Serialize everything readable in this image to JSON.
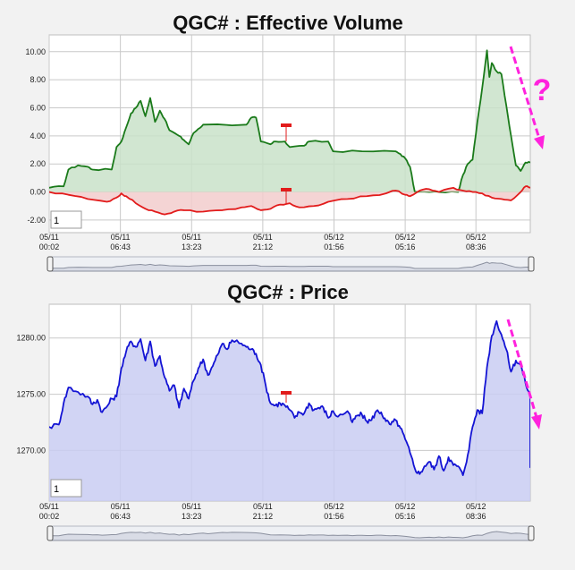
{
  "chart_data": [
    {
      "type": "line",
      "title": "QGC# : Effective Volume",
      "xlabel": "",
      "ylabel": "",
      "ylim": [
        -2.9,
        11.2
      ],
      "y_ticks": [
        "10.00",
        "8.00",
        "6.00",
        "4.00",
        "2.00",
        "0.00",
        "-2.00"
      ],
      "y_tick_values": [
        10,
        8,
        6,
        4,
        2,
        0,
        -2
      ],
      "x_range": [
        0,
        100
      ],
      "x_ticks": [
        {
          "date": "05/11",
          "time": "00:02",
          "x": 0
        },
        {
          "date": "05/11",
          "time": "06:43",
          "x": 14.8
        },
        {
          "date": "05/11",
          "time": "13:23",
          "x": 29.6
        },
        {
          "date": "05/11",
          "time": "21:12",
          "x": 44.4
        },
        {
          "date": "05/12",
          "time": "01:56",
          "x": 59.2
        },
        {
          "date": "05/12",
          "time": "05:16",
          "x": 74.0
        },
        {
          "date": "05/12",
          "time": "08:36",
          "x": 88.7
        }
      ],
      "grid": true,
      "zoom_value": "1",
      "series": [
        {
          "color": "#1a7a1a",
          "fill": "#c9e2c9",
          "points": [
            [
              0,
              0.3
            ],
            [
              3,
              0.4
            ],
            [
              4,
              1.6
            ],
            [
              6,
              1.9
            ],
            [
              8,
              1.8
            ],
            [
              9,
              1.6
            ],
            [
              13,
              1.6
            ],
            [
              14,
              3.2
            ],
            [
              15,
              3.6
            ],
            [
              16,
              4.6
            ],
            [
              17,
              5.6
            ],
            [
              18,
              6.0
            ],
            [
              19,
              6.5
            ],
            [
              20,
              5.4
            ],
            [
              21,
              6.7
            ],
            [
              22,
              5.0
            ],
            [
              23,
              5.8
            ],
            [
              24,
              5.2
            ],
            [
              25,
              4.4
            ],
            [
              27,
              4.0
            ],
            [
              28,
              3.7
            ],
            [
              29,
              3.4
            ],
            [
              30,
              4.2
            ],
            [
              31,
              4.5
            ],
            [
              32,
              4.8
            ],
            [
              41,
              4.8
            ],
            [
              42,
              5.3
            ],
            [
              43,
              5.3
            ],
            [
              44,
              3.6
            ],
            [
              46,
              3.4
            ],
            [
              47,
              3.6
            ],
            [
              49,
              3.6
            ],
            [
              50,
              3.2
            ],
            [
              53,
              3.3
            ],
            [
              54,
              3.6
            ],
            [
              58,
              3.6
            ],
            [
              59,
              2.9
            ],
            [
              65,
              2.9
            ],
            [
              72,
              2.9
            ],
            [
              73,
              2.7
            ],
            [
              74,
              2.4
            ],
            [
              75,
              1.8
            ],
            [
              76,
              0.0
            ],
            [
              79,
              0.0
            ],
            [
              81,
              0.0
            ],
            [
              85,
              0.0
            ],
            [
              86,
              1.2
            ],
            [
              87,
              2.0
            ],
            [
              88,
              2.3
            ],
            [
              89,
              5.0
            ],
            [
              90,
              7.4
            ],
            [
              91,
              10.1
            ],
            [
              91.5,
              8.2
            ],
            [
              92,
              9.2
            ],
            [
              93,
              8.6
            ],
            [
              94,
              8.4
            ],
            [
              95,
              6.2
            ],
            [
              96,
              4.0
            ],
            [
              97,
              1.9
            ],
            [
              98,
              1.5
            ],
            [
              99,
              2.1
            ],
            [
              100,
              2.1
            ]
          ]
        },
        {
          "color": "#e21b1b",
          "fill": "#f2cccc",
          "points": [
            [
              0,
              0.0
            ],
            [
              4,
              -0.2
            ],
            [
              8,
              -0.5
            ],
            [
              12,
              -0.7
            ],
            [
              14,
              -0.4
            ],
            [
              15,
              -0.1
            ],
            [
              16,
              -0.3
            ],
            [
              18,
              -0.8
            ],
            [
              20,
              -1.2
            ],
            [
              22,
              -1.4
            ],
            [
              24,
              -1.6
            ],
            [
              26,
              -1.4
            ],
            [
              28,
              -1.3
            ],
            [
              32,
              -1.4
            ],
            [
              36,
              -1.3
            ],
            [
              40,
              -1.1
            ],
            [
              42,
              -1.0
            ],
            [
              44,
              -1.3
            ],
            [
              46,
              -1.2
            ],
            [
              48,
              -0.9
            ],
            [
              50,
              -0.8
            ],
            [
              52,
              -1.1
            ],
            [
              55,
              -1.0
            ],
            [
              58,
              -0.7
            ],
            [
              62,
              -0.5
            ],
            [
              66,
              -0.3
            ],
            [
              70,
              -0.1
            ],
            [
              72,
              0.1
            ],
            [
              74,
              -0.2
            ],
            [
              75,
              -0.3
            ],
            [
              77,
              0.1
            ],
            [
              79,
              0.2
            ],
            [
              81,
              0.0
            ],
            [
              84,
              0.3
            ],
            [
              86,
              0.1
            ],
            [
              88,
              0.0
            ],
            [
              90,
              -0.1
            ],
            [
              92,
              -0.4
            ],
            [
              94,
              -0.5
            ],
            [
              96,
              -0.6
            ],
            [
              98,
              0.0
            ],
            [
              99,
              0.4
            ],
            [
              100,
              0.3
            ]
          ]
        }
      ],
      "annotation_arrow_color": "#ff22dd",
      "annotation_text": "?"
    },
    {
      "type": "area",
      "title": "QGC# : Price",
      "xlabel": "",
      "ylabel": "",
      "ylim": [
        1265.5,
        1283
      ],
      "y_ticks": [
        "1280.00",
        "1275.00",
        "1270.00"
      ],
      "y_tick_values": [
        1280,
        1275,
        1270
      ],
      "x_range": [
        0,
        100
      ],
      "x_ticks": [
        {
          "date": "05/11",
          "time": "00:02",
          "x": 0
        },
        {
          "date": "05/11",
          "time": "06:43",
          "x": 14.8
        },
        {
          "date": "05/11",
          "time": "13:23",
          "x": 29.6
        },
        {
          "date": "05/11",
          "time": "21:12",
          "x": 44.4
        },
        {
          "date": "05/12",
          "time": "01:56",
          "x": 59.2
        },
        {
          "date": "05/12",
          "time": "05:16",
          "x": 74.0
        },
        {
          "date": "05/12",
          "time": "08:36",
          "x": 88.7
        }
      ],
      "grid": true,
      "zoom_value": "1",
      "series": [
        {
          "color": "#1414d4",
          "fill": "#c9ccf2",
          "points": [
            [
              0,
              1272.1
            ],
            [
              2,
              1272.3
            ],
            [
              3,
              1274.2
            ],
            [
              4,
              1275.6
            ],
            [
              6,
              1275.2
            ],
            [
              8,
              1274.8
            ],
            [
              9,
              1274.1
            ],
            [
              10,
              1274.5
            ],
            [
              11,
              1273.4
            ],
            [
              12,
              1273.9
            ],
            [
              13,
              1274.6
            ],
            [
              14,
              1274.8
            ],
            [
              15,
              1277.3
            ],
            [
              16,
              1278.8
            ],
            [
              17,
              1279.7
            ],
            [
              18,
              1279.2
            ],
            [
              19,
              1279.9
            ],
            [
              20,
              1278.0
            ],
            [
              21,
              1279.7
            ],
            [
              22,
              1277.5
            ],
            [
              23,
              1278.4
            ],
            [
              24,
              1276.5
            ],
            [
              25,
              1275.3
            ],
            [
              26,
              1275.8
            ],
            [
              27,
              1273.8
            ],
            [
              28,
              1275.5
            ],
            [
              29,
              1274.6
            ],
            [
              30,
              1276.2
            ],
            [
              31,
              1277.3
            ],
            [
              32,
              1278.1
            ],
            [
              33,
              1276.7
            ],
            [
              34,
              1277.5
            ],
            [
              35,
              1278.5
            ],
            [
              36,
              1279.5
            ],
            [
              37,
              1279.0
            ],
            [
              38,
              1279.8
            ],
            [
              40,
              1279.5
            ],
            [
              41,
              1279.2
            ],
            [
              42,
              1279.0
            ],
            [
              43,
              1278.6
            ],
            [
              44,
              1277.6
            ],
            [
              45,
              1275.8
            ],
            [
              46,
              1274.2
            ],
            [
              47,
              1274.0
            ],
            [
              48,
              1274.2
            ],
            [
              49,
              1274.0
            ],
            [
              50,
              1273.6
            ],
            [
              51,
              1272.9
            ],
            [
              52,
              1273.4
            ],
            [
              53,
              1273.3
            ],
            [
              54,
              1274.2
            ],
            [
              55,
              1273.6
            ],
            [
              56,
              1273.8
            ],
            [
              57,
              1273.8
            ],
            [
              58,
              1272.9
            ],
            [
              59,
              1273.5
            ],
            [
              60,
              1273.0
            ],
            [
              62,
              1273.5
            ],
            [
              63,
              1272.5
            ],
            [
              64,
              1273.1
            ],
            [
              65,
              1273.2
            ],
            [
              66,
              1272.6
            ],
            [
              67,
              1272.7
            ],
            [
              68,
              1273.5
            ],
            [
              69,
              1273.4
            ],
            [
              70,
              1272.6
            ],
            [
              71,
              1272.3
            ],
            [
              72,
              1272.7
            ],
            [
              73,
              1272.0
            ],
            [
              74,
              1271.0
            ],
            [
              75,
              1269.8
            ],
            [
              76,
              1268.4
            ],
            [
              77,
              1267.9
            ],
            [
              78,
              1268.6
            ],
            [
              79,
              1269.0
            ],
            [
              80,
              1268.3
            ],
            [
              81,
              1269.5
            ],
            [
              82,
              1268.2
            ],
            [
              83,
              1269.4
            ],
            [
              84,
              1268.7
            ],
            [
              85,
              1268.6
            ],
            [
              86,
              1267.8
            ],
            [
              87,
              1269.6
            ],
            [
              88,
              1272.1
            ],
            [
              89,
              1273.6
            ],
            [
              90,
              1273.3
            ],
            [
              91,
              1277.4
            ],
            [
              92,
              1280.2
            ],
            [
              93,
              1281.5
            ],
            [
              94,
              1280.3
            ],
            [
              95,
              1279.0
            ],
            [
              96,
              1277.0
            ],
            [
              97,
              1278.0
            ],
            [
              98,
              1277.6
            ],
            [
              99,
              1276.0
            ],
            [
              100,
              1274.8
            ],
            [
              101,
              1270.2
            ],
            [
              102,
              1268.5
            ],
            [
              103,
              1269.0
            ],
            [
              104,
              1269.8
            ],
            [
              105,
              1270.4
            ]
          ]
        }
      ],
      "annotation_arrow_color": "#ff22dd",
      "annotation_text": ""
    }
  ],
  "colors": {
    "plot_background": "#ffffff",
    "page_background": "#f2f2f2",
    "navigator_fill": "#d9dce6",
    "navigator_line": "#8a8f9e",
    "annotation": "#ff22dd",
    "marker_flag": "#e21b1b"
  }
}
